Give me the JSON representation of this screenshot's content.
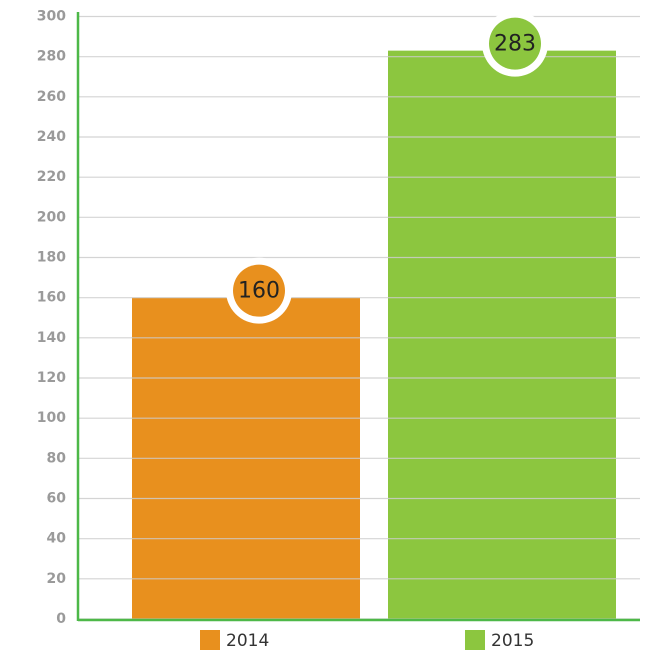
{
  "chart_data": {
    "type": "bar",
    "categories": [
      null
    ],
    "series": [
      {
        "name": "2014",
        "color": "#e8901e",
        "values": [
          160
        ]
      },
      {
        "name": "2015",
        "color": "#8cc63f",
        "values": [
          283
        ]
      }
    ],
    "ylim": [
      0,
      300
    ],
    "yticks": [
      0,
      20,
      40,
      60,
      80,
      100,
      120,
      140,
      160,
      180,
      200,
      220,
      240,
      260,
      280,
      300
    ],
    "grid": true
  }
}
